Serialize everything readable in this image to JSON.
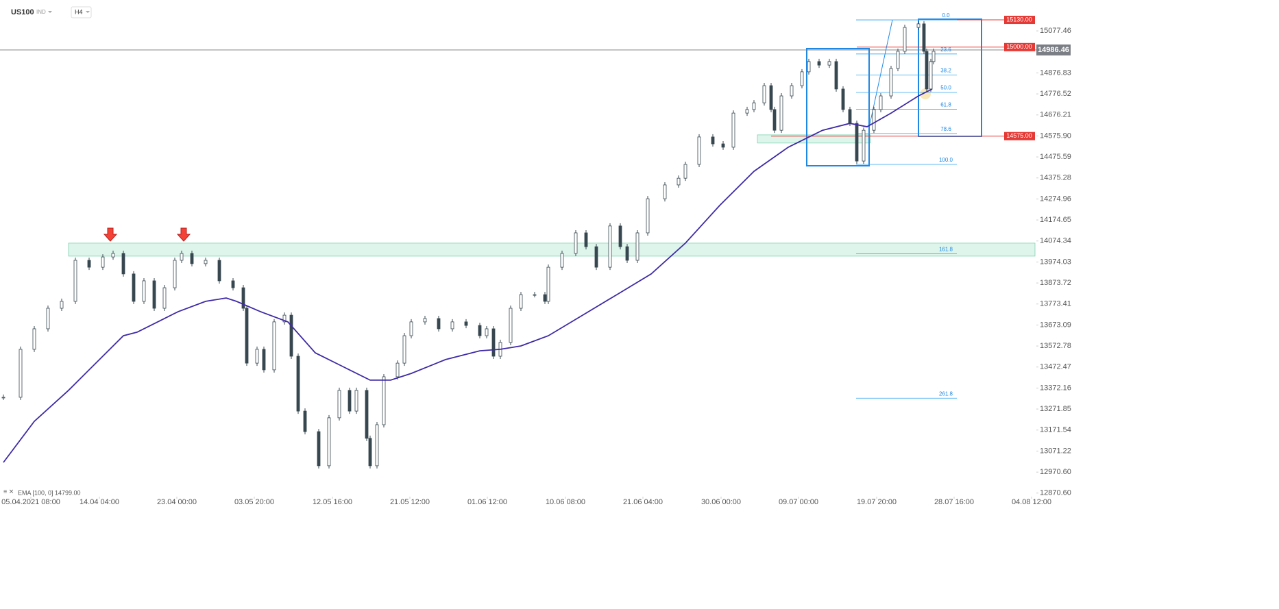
{
  "chart_data": {
    "type": "candlestick",
    "title": "US100",
    "market": "IND",
    "timeframe": "H4",
    "color": "#37474f",
    "x": [
      0.5,
      3,
      5,
      7,
      9,
      11,
      13,
      15,
      16.5,
      18,
      19.5,
      21,
      22.5,
      24,
      25.5,
      26.5,
      28,
      30,
      32,
      34,
      35.5,
      36,
      37.5,
      38.5,
      40,
      41.5,
      42.5,
      43.5,
      44.5,
      46.5,
      48,
      49.5,
      51,
      52,
      53.5,
      54,
      55,
      56,
      58,
      59,
      60,
      62,
      64,
      66,
      68,
      70,
      71,
      72,
      73,
      74.5,
      76,
      78,
      79.5,
      80,
      82,
      84,
      85.5,
      87,
      89,
      90.5,
      91.5,
      93,
      94.5,
      97,
      99,
      100,
      102,
      104,
      105.5,
      107,
      109,
      110,
      111.5,
      112.5,
      113,
      114,
      115.5,
      117,
      118,
      119.5,
      121,
      122,
      123,
      124,
      125,
      126,
      127.5,
      128.5,
      130,
      131,
      132,
      134,
      134.8,
      135.2,
      135.8,
      136.2
    ],
    "values": [
      13328,
      13557,
      13655,
      13753,
      13786,
      13982,
      13949,
      13998,
      14015,
      13917,
      13786,
      13884,
      13753,
      13851,
      13982,
      14015,
      13966,
      13982,
      13884,
      13851,
      13753,
      13491,
      13557,
      13459,
      13688,
      13720,
      13524,
      13262,
      13164,
      13001,
      13230,
      13361,
      13262,
      13361,
      13132,
      13001,
      13197,
      13426,
      13491,
      13622,
      13688,
      13704,
      13655,
      13688,
      13671,
      13622,
      13655,
      13524,
      13590,
      13753,
      13818,
      13818,
      13786,
      13949,
      14015,
      14113,
      14047,
      13949,
      14146,
      14047,
      13982,
      14113,
      14276,
      14342,
      14374,
      14440,
      14571,
      14538,
      14522,
      14685,
      14702,
      14734,
      14816,
      14702,
      14603,
      14767,
      14816,
      14882,
      14931,
      14914,
      14931,
      14800,
      14702,
      14636,
      14456,
      14603,
      14702,
      14767,
      14898,
      14980,
      15094,
      15111,
      14980,
      14800,
      14931,
      14980
    ],
    "ema": {
      "name": "EMA [100, 0]",
      "color": "#3f2aa6",
      "last": {
        "value": 14799,
        "label": "14799.00"
      },
      "x": [
        0.5,
        5,
        10,
        13,
        18,
        20,
        23,
        26,
        30,
        33,
        34.5,
        38,
        42,
        46,
        50,
        54,
        57,
        60,
        65,
        70,
        73,
        76,
        80,
        85,
        90,
        95,
        100,
        105,
        110,
        115,
        120,
        124,
        126.5,
        130,
        134,
        136
      ],
      "values": [
        13017,
        13213,
        13361,
        13459,
        13622,
        13639,
        13688,
        13737,
        13786,
        13802,
        13786,
        13737,
        13688,
        13540,
        13475,
        13410,
        13410,
        13442,
        13508,
        13550,
        13557,
        13573,
        13622,
        13720,
        13818,
        13917,
        14064,
        14244,
        14407,
        14522,
        14603,
        14636,
        14620,
        14685,
        14767,
        14800
      ]
    },
    "xlim": [
      0,
      151.2
    ],
    "ylim": [
      12860,
      15225
    ],
    "xticks": [
      {
        "value": 4.5,
        "label": "05.04.2021  08:00"
      },
      {
        "value": 14.5,
        "label": "14.04  04:00"
      },
      {
        "value": 25.8,
        "label": "23.04  00:00"
      },
      {
        "value": 37.1,
        "label": "03.05  20:00"
      },
      {
        "value": 48.5,
        "label": "12.05  16:00"
      },
      {
        "value": 59.8,
        "label": "21.05  12:00"
      },
      {
        "value": 71.1,
        "label": "01.06  12:00"
      },
      {
        "value": 82.5,
        "label": "10.06  08:00"
      },
      {
        "value": 93.8,
        "label": "21.06  04:00"
      },
      {
        "value": 105.2,
        "label": "30.06  00:00"
      },
      {
        "value": 116.5,
        "label": "09.07  00:00"
      },
      {
        "value": 127.9,
        "label": "19.07  20:00"
      },
      {
        "value": 139.2,
        "label": "28.07  16:00"
      },
      {
        "value": 150.5,
        "label": "04.08  12:00"
      }
    ],
    "yticks": [
      15077.46,
      14876.83,
      14776.52,
      14676.21,
      {
        "value": 14575.9,
        "label": "14575.90"
      },
      14475.59,
      14375.28,
      14274.96,
      14174.65,
      14074.34,
      13974.03,
      13873.72,
      13773.41,
      13673.09,
      13572.78,
      13472.47,
      13372.16,
      13271.85,
      13171.54,
      13071.22,
      {
        "value": 12970.6,
        "label": "12970.60"
      },
      {
        "value": 12870.6,
        "label": "12870.60"
      }
    ],
    "current_price": 14986.46,
    "levels": [
      {
        "value": 15130,
        "label": "15130.00"
      },
      {
        "value": 15000,
        "label": "15000.00"
      },
      {
        "value": 14575,
        "label": "14575.00"
      }
    ],
    "zones": [
      {
        "from": 14002,
        "to": 14064
      },
      {
        "from": 14542,
        "to": 14581
      }
    ],
    "fib": {
      "high": 15130,
      "low": 14440,
      "levels": [
        {
          "value": 0,
          "label": "0.0"
        },
        23.6,
        38.2,
        {
          "value": 50,
          "label": "50.0"
        },
        61.8,
        78.6,
        {
          "value": 100,
          "label": "100.0"
        },
        161.8,
        261.8
      ]
    }
  }
}
